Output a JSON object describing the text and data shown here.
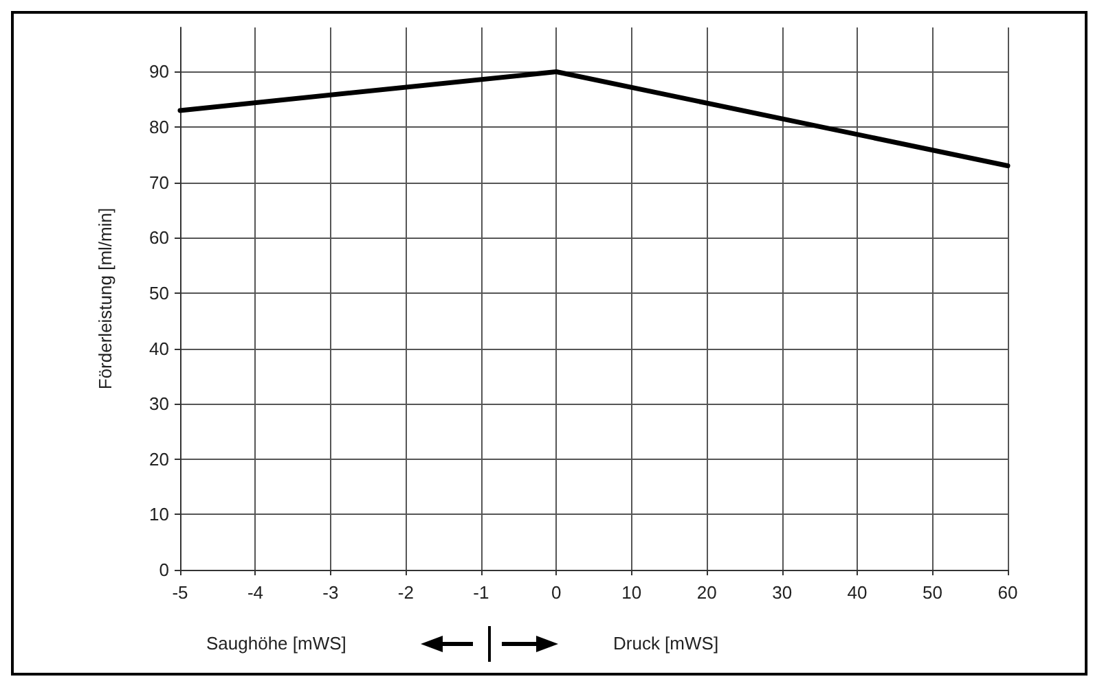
{
  "chart_data": {
    "type": "line",
    "ylabel": "Förderleistung [ml/min]",
    "categories": [
      "-5",
      "-4",
      "-3",
      "-2",
      "-1",
      "0",
      "10",
      "20",
      "30",
      "40",
      "50",
      "60"
    ],
    "series": [
      {
        "color": "#000000",
        "values": [
          83,
          null,
          null,
          null,
          null,
          90,
          null,
          null,
          null,
          null,
          null,
          73
        ]
      }
    ],
    "ylim": [
      0,
      98
    ],
    "yticks": [
      0,
      10,
      20,
      30,
      40,
      50,
      60,
      70,
      80,
      90
    ],
    "grid": true,
    "marker": "none",
    "line_style": "solid",
    "annotations": [
      "Saughöhe [mWS]",
      "Druck [mWS]"
    ]
  }
}
